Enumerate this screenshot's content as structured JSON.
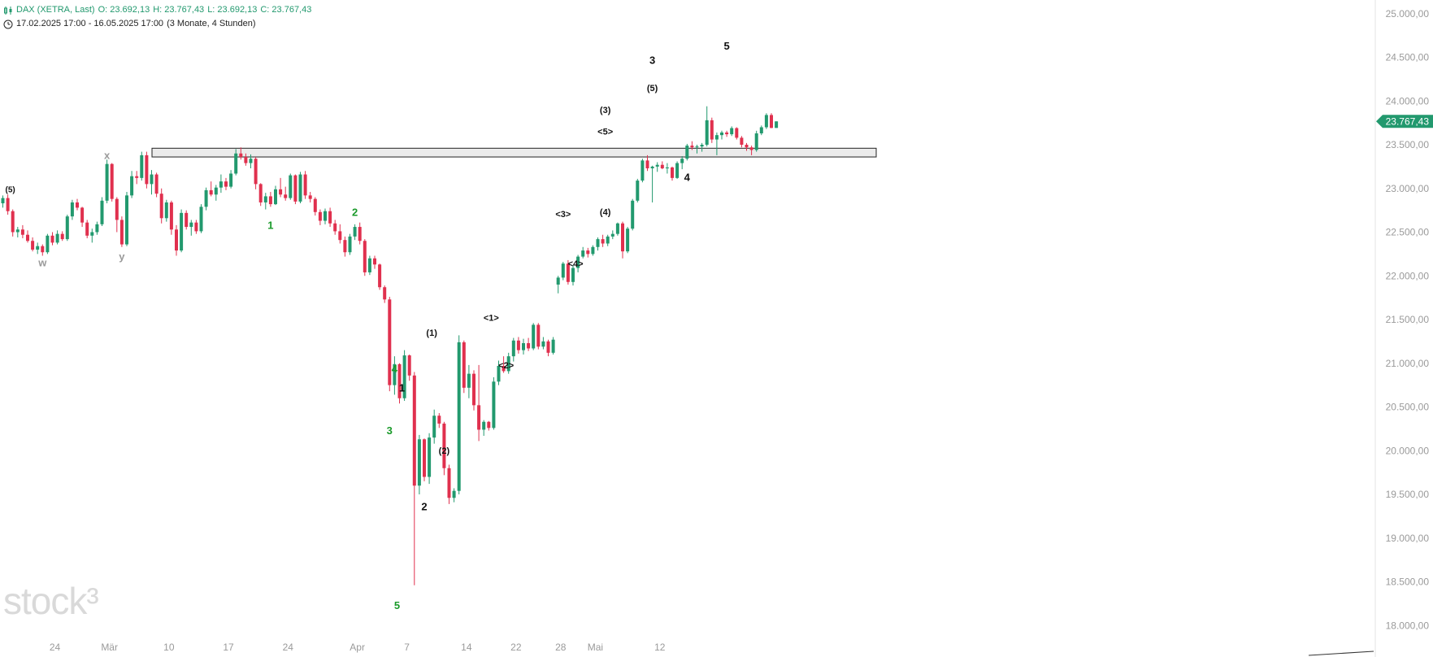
{
  "header": {
    "instrument": "DAX (XETRA, Last)",
    "open": "O: 23.692,13",
    "high": "H: 23.767,43",
    "low": "L: 23.692,13",
    "close": "C: 23.767,43",
    "range": "17.02.2025 17:00 - 16.05.2025 17:00",
    "period": "(3 Monate, 4 Stunden)",
    "instrument_icon": "candlestick-icon",
    "range_icon": "clock-icon"
  },
  "watermark": "stock³",
  "colors": {
    "up": "#22996e",
    "down": "#e0304e",
    "price_tag": "#22996e",
    "grid_text": "#9a9a9a",
    "wave_black": "#111111",
    "wave_green": "#1a9a2a",
    "wave_gray": "#9a9a9a"
  },
  "chart_data": {
    "type": "candlestick",
    "price_label": "23.767,43",
    "last_price": 23767.43,
    "ylim": [
      17900,
      25100
    ],
    "y_ticks": [
      {
        "value": 25000,
        "label": "25.000,00"
      },
      {
        "value": 24500,
        "label": "24.500,00"
      },
      {
        "value": 24000,
        "label": "24.000,00"
      },
      {
        "value": 23500,
        "label": "23.500,00"
      },
      {
        "value": 23000,
        "label": "23.000,00"
      },
      {
        "value": 22500,
        "label": "22.500,00"
      },
      {
        "value": 22000,
        "label": "22.000,00"
      },
      {
        "value": 21500,
        "label": "21.500,00"
      },
      {
        "value": 21000,
        "label": "21.000,00"
      },
      {
        "value": 20500,
        "label": "20.500,00"
      },
      {
        "value": 20000,
        "label": "20.000,00"
      },
      {
        "value": 19500,
        "label": "19.500,00"
      },
      {
        "value": 19000,
        "label": "19.000,00"
      },
      {
        "value": 18500,
        "label": "18.500,00"
      },
      {
        "value": 18000,
        "label": "18.000,00"
      }
    ],
    "x_ticks": [
      {
        "date": "2025-02-24",
        "label": "24"
      },
      {
        "date": "2025-03-03",
        "label": "Mär"
      },
      {
        "date": "2025-03-10",
        "label": "10"
      },
      {
        "date": "2025-03-17",
        "label": "17"
      },
      {
        "date": "2025-03-24",
        "label": "24"
      },
      {
        "date": "2025-04-01",
        "label": "Apr"
      },
      {
        "date": "2025-04-07",
        "label": "7"
      },
      {
        "date": "2025-04-14",
        "label": "14"
      },
      {
        "date": "2025-04-22",
        "label": "22"
      },
      {
        "date": "2025-04-28",
        "label": "28"
      },
      {
        "date": "2025-05-02",
        "label": "Mai"
      },
      {
        "date": "2025-05-12",
        "label": "12"
      }
    ],
    "resistance_zone": [
      23360,
      23460
    ],
    "candles": [
      [
        22830,
        22920,
        22780,
        22890
      ],
      [
        22890,
        22930,
        22700,
        22740
      ],
      [
        22740,
        22760,
        22450,
        22500
      ],
      [
        22500,
        22560,
        22440,
        22530
      ],
      [
        22530,
        22580,
        22430,
        22470
      ],
      [
        22470,
        22520,
        22380,
        22400
      ],
      [
        22400,
        22440,
        22280,
        22300
      ],
      [
        22300,
        22380,
        22250,
        22340
      ],
      [
        22340,
        22360,
        22230,
        22270
      ],
      [
        22270,
        22480,
        22250,
        22460
      ],
      [
        22460,
        22500,
        22350,
        22380
      ],
      [
        22380,
        22520,
        22360,
        22480
      ],
      [
        22480,
        22510,
        22400,
        22420
      ],
      [
        22420,
        22700,
        22400,
        22680
      ],
      [
        22680,
        22870,
        22640,
        22840
      ],
      [
        22840,
        22880,
        22750,
        22780
      ],
      [
        22780,
        22790,
        22560,
        22610
      ],
      [
        22610,
        22640,
        22430,
        22460
      ],
      [
        22460,
        22540,
        22380,
        22500
      ],
      [
        22500,
        22620,
        22470,
        22590
      ],
      [
        22590,
        22900,
        22570,
        22860
      ],
      [
        22860,
        23330,
        22830,
        23280
      ],
      [
        23280,
        23290,
        22850,
        22880
      ],
      [
        22880,
        22900,
        22500,
        22640
      ],
      [
        22640,
        22680,
        22330,
        22360
      ],
      [
        22360,
        22960,
        22340,
        22920
      ],
      [
        22920,
        23200,
        22890,
        23140
      ],
      [
        23140,
        23200,
        23050,
        23120
      ],
      [
        23120,
        23420,
        23090,
        23380
      ],
      [
        23380,
        23420,
        23000,
        23050
      ],
      [
        23050,
        23210,
        22930,
        23160
      ],
      [
        23160,
        23180,
        22900,
        22940
      ],
      [
        22940,
        23000,
        22600,
        22660
      ],
      [
        22660,
        22870,
        22620,
        22840
      ],
      [
        22840,
        22860,
        22470,
        22530
      ],
      [
        22530,
        22580,
        22230,
        22290
      ],
      [
        22290,
        22760,
        22270,
        22720
      ],
      [
        22720,
        22750,
        22530,
        22560
      ],
      [
        22560,
        22640,
        22460,
        22610
      ],
      [
        22610,
        22640,
        22480,
        22510
      ],
      [
        22510,
        22820,
        22490,
        22790
      ],
      [
        22790,
        23010,
        22750,
        22980
      ],
      [
        22980,
        23080,
        22910,
        22930
      ],
      [
        22930,
        23040,
        22860,
        23010
      ],
      [
        23010,
        23160,
        22950,
        23080
      ],
      [
        23080,
        23120,
        22980,
        23020
      ],
      [
        23020,
        23210,
        23000,
        23170
      ],
      [
        23170,
        23450,
        23150,
        23400
      ],
      [
        23400,
        23470,
        23330,
        23360
      ],
      [
        23360,
        23400,
        23260,
        23290
      ],
      [
        23290,
        23390,
        23230,
        23340
      ],
      [
        23340,
        23360,
        22990,
        23050
      ],
      [
        23050,
        23060,
        22800,
        22840
      ],
      [
        22840,
        22950,
        22760,
        22910
      ],
      [
        22910,
        22960,
        22790,
        22820
      ],
      [
        22820,
        23030,
        22810,
        22990
      ],
      [
        22990,
        23120,
        22900,
        22930
      ],
      [
        22930,
        23020,
        22860,
        22890
      ],
      [
        22890,
        23170,
        22870,
        23150
      ],
      [
        23150,
        23160,
        22820,
        22850
      ],
      [
        22850,
        23190,
        22830,
        23160
      ],
      [
        23160,
        23200,
        22880,
        22920
      ],
      [
        22920,
        22960,
        22840,
        22880
      ],
      [
        22880,
        22900,
        22690,
        22730
      ],
      [
        22730,
        22760,
        22580,
        22630
      ],
      [
        22630,
        22770,
        22590,
        22740
      ],
      [
        22740,
        22780,
        22560,
        22600
      ],
      [
        22600,
        22640,
        22470,
        22510
      ],
      [
        22510,
        22590,
        22370,
        22410
      ],
      [
        22410,
        22450,
        22220,
        22270
      ],
      [
        22270,
        22480,
        22240,
        22450
      ],
      [
        22450,
        22590,
        22410,
        22560
      ],
      [
        22560,
        22610,
        22360,
        22400
      ],
      [
        22400,
        22420,
        22000,
        22040
      ],
      [
        22040,
        22230,
        22010,
        22200
      ],
      [
        22200,
        22230,
        22080,
        22130
      ],
      [
        22130,
        22140,
        21840,
        21870
      ],
      [
        21870,
        21890,
        21690,
        21730
      ],
      [
        21730,
        21760,
        20680,
        20750
      ],
      [
        20750,
        21080,
        20640,
        20990
      ],
      [
        20990,
        21000,
        20540,
        20600
      ],
      [
        20600,
        21150,
        20570,
        21090
      ],
      [
        21090,
        21100,
        20800,
        20860
      ],
      [
        20860,
        20900,
        18460,
        19600
      ],
      [
        19600,
        20180,
        19500,
        20130
      ],
      [
        20130,
        20140,
        19650,
        19700
      ],
      [
        19700,
        20200,
        19620,
        20150
      ],
      [
        20150,
        20470,
        20080,
        20400
      ],
      [
        20400,
        20430,
        20260,
        20310
      ],
      [
        20310,
        20330,
        19720,
        19800
      ],
      [
        19800,
        19840,
        19390,
        19460
      ],
      [
        19460,
        19570,
        19410,
        19540
      ],
      [
        19540,
        21320,
        19500,
        21240
      ],
      [
        21240,
        21260,
        20660,
        20720
      ],
      [
        20720,
        20980,
        20600,
        20880
      ],
      [
        20880,
        20920,
        20460,
        20520
      ],
      [
        20520,
        20980,
        20110,
        20240
      ],
      [
        20240,
        20350,
        20170,
        20330
      ],
      [
        20330,
        20340,
        20230,
        20260
      ],
      [
        20260,
        20840,
        20240,
        20790
      ],
      [
        20790,
        21030,
        20750,
        20970
      ],
      [
        20970,
        21080,
        20890,
        20910
      ],
      [
        20910,
        21120,
        20880,
        21080
      ],
      [
        21080,
        21290,
        21020,
        21260
      ],
      [
        21260,
        21300,
        21110,
        21150
      ],
      [
        21150,
        21280,
        21100,
        21230
      ],
      [
        21230,
        21290,
        21140,
        21170
      ],
      [
        21170,
        21460,
        21150,
        21440
      ],
      [
        21440,
        21460,
        21160,
        21190
      ],
      [
        21190,
        21300,
        21160,
        21250
      ],
      [
        21250,
        21270,
        21080,
        21120
      ],
      [
        21120,
        21300,
        21100,
        21270
      ],
      [
        21900,
        22000,
        21800,
        21980
      ],
      [
        21980,
        22160,
        21950,
        22140
      ],
      [
        22140,
        22180,
        21900,
        21930
      ],
      [
        21930,
        22120,
        21890,
        22090
      ],
      [
        22090,
        22240,
        22040,
        22220
      ],
      [
        22220,
        22330,
        22200,
        22290
      ],
      [
        22290,
        22320,
        22210,
        22250
      ],
      [
        22250,
        22350,
        22230,
        22330
      ],
      [
        22330,
        22440,
        22290,
        22420
      ],
      [
        22420,
        22470,
        22330,
        22370
      ],
      [
        22370,
        22470,
        22340,
        22450
      ],
      [
        22450,
        22520,
        22420,
        22480
      ],
      [
        22480,
        22610,
        22460,
        22600
      ],
      [
        22600,
        22620,
        22200,
        22280
      ],
      [
        22280,
        22560,
        22260,
        22540
      ],
      [
        22540,
        22880,
        22520,
        22860
      ],
      [
        22860,
        23110,
        22840,
        23090
      ],
      [
        23090,
        23340,
        23070,
        23320
      ],
      [
        23320,
        23380,
        23200,
        23230
      ],
      [
        23230,
        23260,
        22840,
        23250
      ],
      [
        23250,
        23300,
        23190,
        23270
      ],
      [
        23270,
        23310,
        23220,
        23230
      ],
      [
        23230,
        23290,
        23170,
        23240
      ],
      [
        23240,
        23250,
        23090,
        23120
      ],
      [
        23120,
        23310,
        23110,
        23290
      ],
      [
        23290,
        23370,
        23220,
        23340
      ],
      [
        23340,
        23510,
        23320,
        23490
      ],
      [
        23490,
        23540,
        23440,
        23470
      ],
      [
        23470,
        23500,
        23400,
        23480
      ],
      [
        23480,
        23520,
        23420,
        23500
      ],
      [
        23500,
        23940,
        23480,
        23780
      ],
      [
        23780,
        23810,
        23520,
        23560
      ],
      [
        23560,
        23640,
        23380,
        23610
      ],
      [
        23610,
        23660,
        23560,
        23640
      ],
      [
        23640,
        23660,
        23590,
        23620
      ],
      [
        23620,
        23710,
        23600,
        23690
      ],
      [
        23690,
        23700,
        23560,
        23580
      ],
      [
        23580,
        23600,
        23470,
        23500
      ],
      [
        23500,
        23520,
        23430,
        23470
      ],
      [
        23470,
        23490,
        23380,
        23440
      ],
      [
        23440,
        23660,
        23420,
        23630
      ],
      [
        23630,
        23720,
        23610,
        23700
      ],
      [
        23700,
        23860,
        23680,
        23840
      ],
      [
        23840,
        23860,
        23690,
        23692.13
      ],
      [
        23692.13,
        23767.43,
        23692.13,
        23767.43
      ]
    ],
    "wave_labels": [
      {
        "text": "(5)",
        "color": "black",
        "bar": 1.5,
        "price": 22990,
        "size": 10
      },
      {
        "text": "w",
        "color": "gray",
        "bar": 8,
        "price": 22150,
        "size": 13
      },
      {
        "text": "x",
        "color": "gray",
        "bar": 21,
        "price": 23380,
        "size": 13
      },
      {
        "text": "y",
        "color": "gray",
        "bar": 24,
        "price": 22220,
        "size": 13
      },
      {
        "text": "1",
        "color": "green",
        "bar": 54,
        "price": 22580,
        "size": 13
      },
      {
        "text": "2",
        "color": "green",
        "bar": 71,
        "price": 22730,
        "size": 13
      },
      {
        "text": "4",
        "color": "green",
        "bar": 79,
        "price": 20940,
        "size": 13
      },
      {
        "text": "1",
        "color": "black",
        "bar": 80.5,
        "price": 20720,
        "size": 13
      },
      {
        "text": "3",
        "color": "green",
        "bar": 78,
        "price": 20230,
        "size": 13
      },
      {
        "text": "5",
        "color": "green",
        "bar": 79.5,
        "price": 18230,
        "size": 13
      },
      {
        "text": "2",
        "color": "black",
        "bar": 85,
        "price": 19360,
        "size": 13
      },
      {
        "text": "(1)",
        "color": "black",
        "bar": 86.5,
        "price": 21350,
        "size": 11
      },
      {
        "text": "(2)",
        "color": "black",
        "bar": 89,
        "price": 20000,
        "size": 11
      },
      {
        "text": "<1>",
        "color": "black",
        "bar": 98.5,
        "price": 21520,
        "size": 11
      },
      {
        "text": "<2>",
        "color": "black",
        "bar": 101.5,
        "price": 20980,
        "size": 11
      },
      {
        "text": "<3>",
        "color": "black",
        "bar": 113,
        "price": 22710,
        "size": 11
      },
      {
        "text": "<4>",
        "color": "black",
        "bar": 115.5,
        "price": 22140,
        "size": 11
      },
      {
        "text": "(3)",
        "color": "black",
        "bar": 121.5,
        "price": 23900,
        "size": 11
      },
      {
        "text": "<5>",
        "color": "black",
        "bar": 121.5,
        "price": 23650,
        "size": 11
      },
      {
        "text": "(4)",
        "color": "black",
        "bar": 121.5,
        "price": 22730,
        "size": 11
      },
      {
        "text": "3",
        "color": "black",
        "bar": 131,
        "price": 24470,
        "size": 13
      },
      {
        "text": "(5)",
        "color": "black",
        "bar": 131,
        "price": 24150,
        "size": 11
      },
      {
        "text": "4",
        "color": "black",
        "bar": 138,
        "price": 23130,
        "size": 13
      },
      {
        "text": "5",
        "color": "black",
        "bar": 146,
        "price": 24630,
        "size": 13
      }
    ]
  }
}
